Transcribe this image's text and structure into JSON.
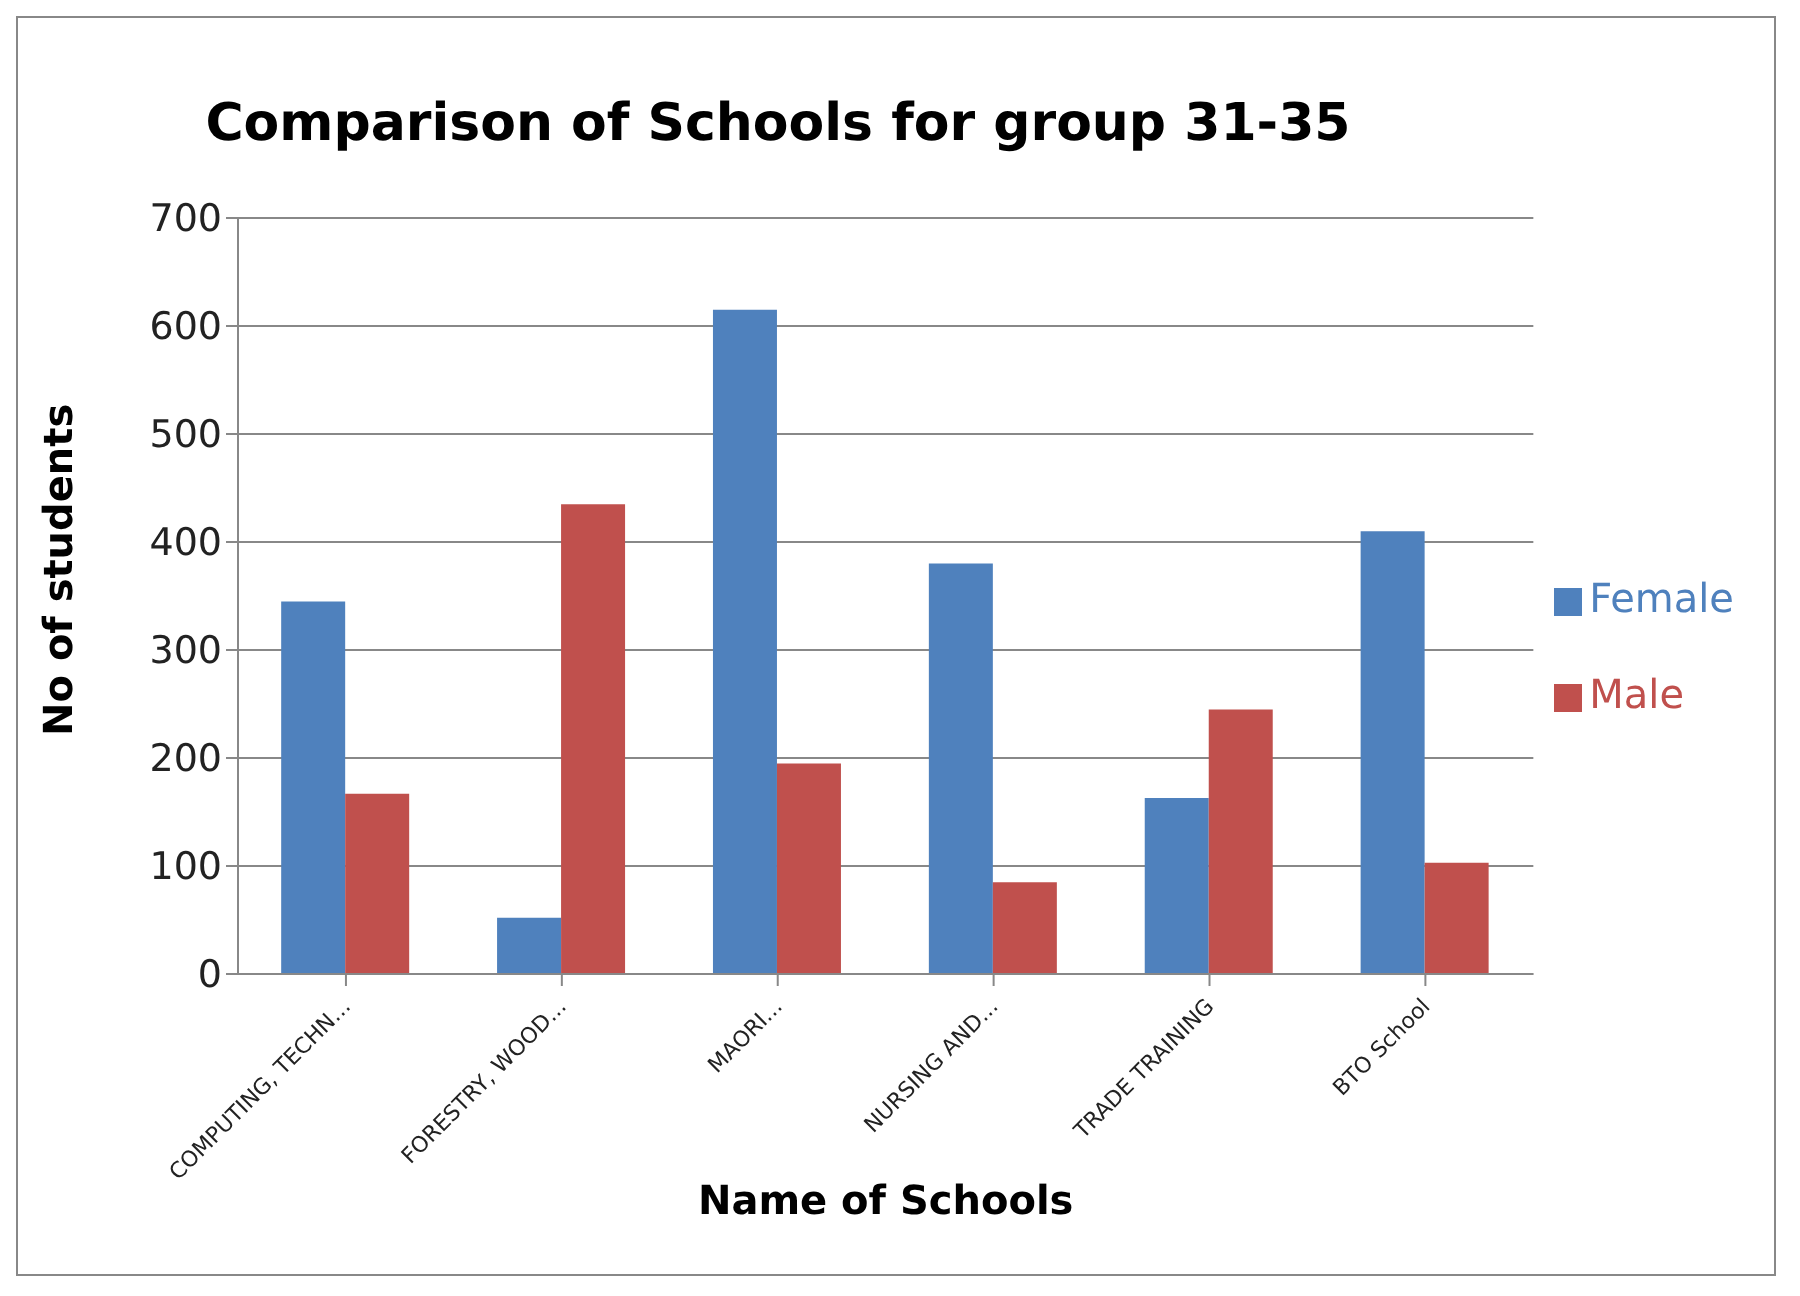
{
  "chart_data": {
    "type": "bar",
    "title": "Comparison of Schools for group 31-35",
    "xlabel": "Name of Schools",
    "ylabel": "No of students",
    "categories": [
      "COMPUTING, TECHN...",
      "FORESTRY, WOOD...",
      "MAORI...",
      "NURSING AND...",
      "TRADE TRAINING",
      "BTO School"
    ],
    "series": [
      {
        "name": "Female",
        "color": "#4f81bd",
        "values": [
          345,
          52,
          615,
          380,
          163,
          410
        ]
      },
      {
        "name": "Male",
        "color": "#c0504d",
        "values": [
          167,
          435,
          195,
          85,
          245,
          103
        ]
      }
    ],
    "ylim": [
      0,
      700
    ],
    "yticks": [
      0,
      100,
      200,
      300,
      400,
      500,
      600,
      700
    ],
    "grid": "y",
    "legend": "right"
  }
}
